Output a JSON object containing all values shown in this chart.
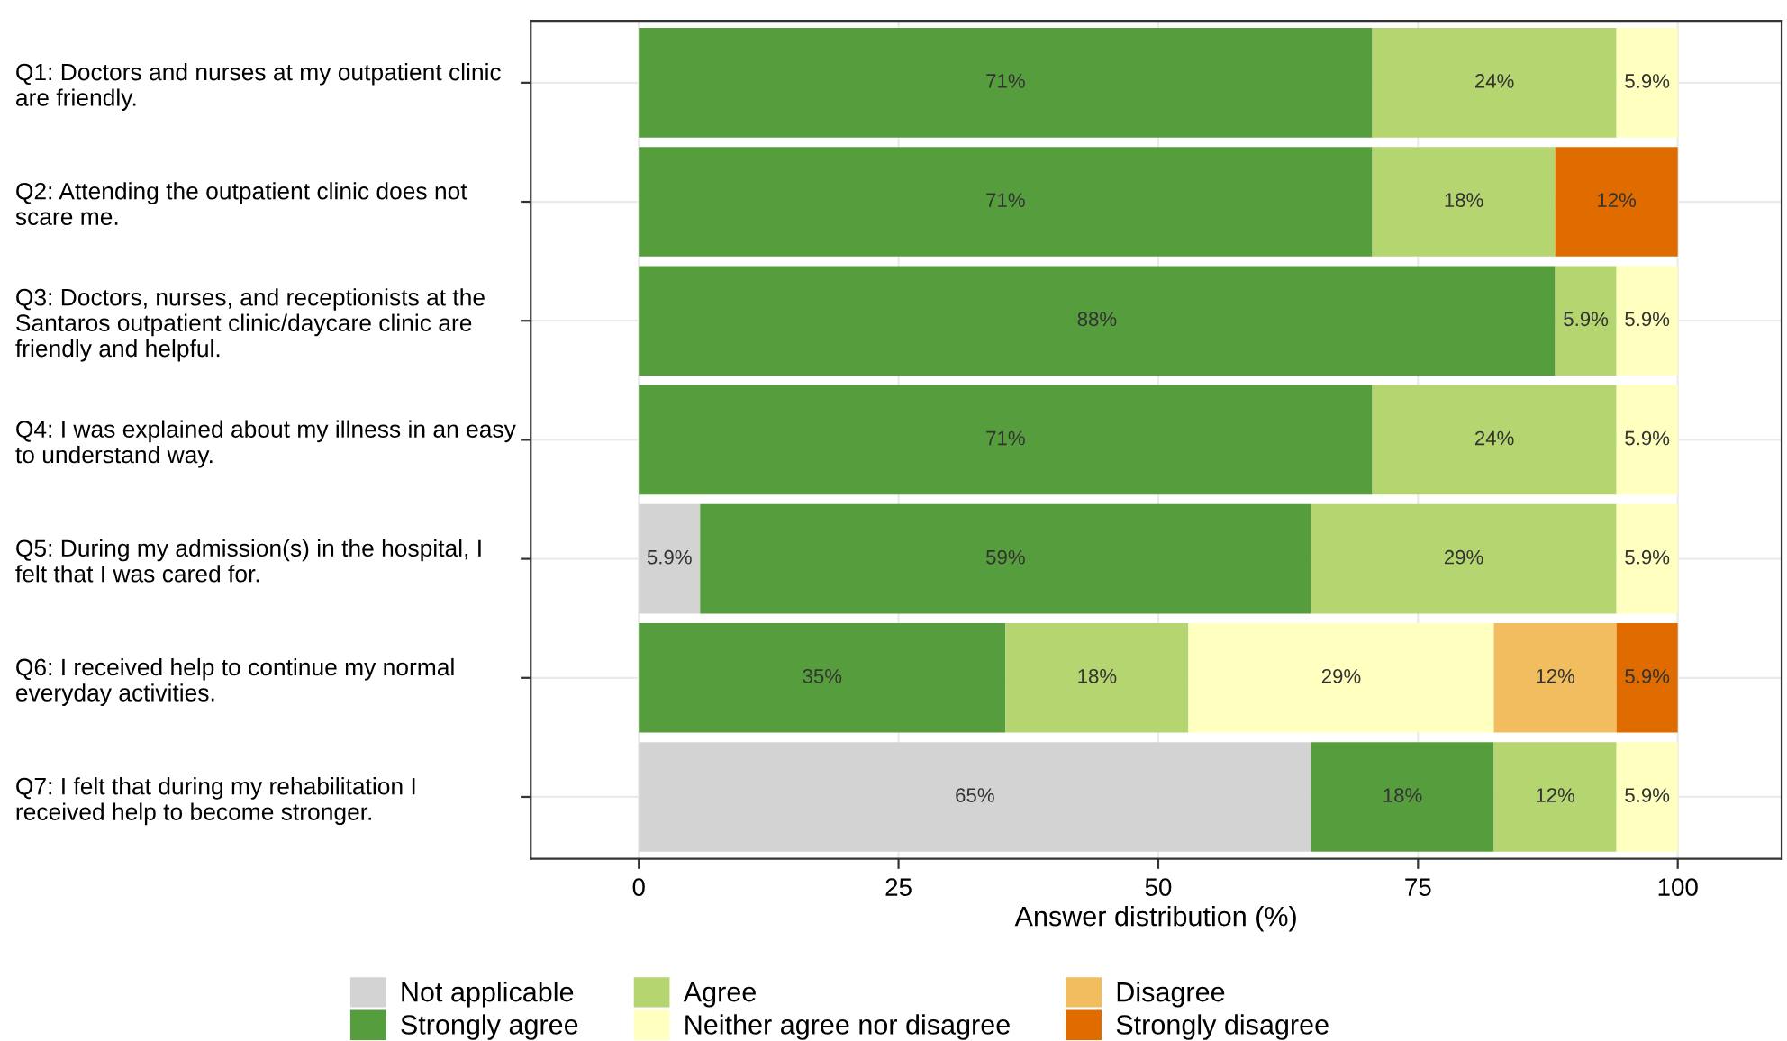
{
  "chart_data": {
    "type": "bar",
    "orientation": "horizontal",
    "stacked": true,
    "categories": [
      "Q1: Doctors and nurses at my outpatient clinic\nare friendly.",
      "Q2: Attending the outpatient clinic does not\nscare me.",
      "Q3: Doctors, nurses, and receptionists at the\nSantaros outpatient clinic/daycare clinic are\nfriendly and helpful.",
      "Q4: I was explained about my illness in an easy\nto understand way.",
      "Q5: During my admission(s) in the hospital, I\nfelt that I was cared for.",
      "Q6: I received help to continue my normal\neveryday activities.",
      "Q7: I felt that during my rehabilitation I\nreceived help to become stronger."
    ],
    "series": [
      {
        "name": "Not applicable",
        "color": "#d3d3d3",
        "values": [
          null,
          null,
          null,
          null,
          5.9,
          null,
          64.7
        ],
        "value_labels": [
          null,
          null,
          null,
          null,
          "5.9%",
          null,
          "65%"
        ]
      },
      {
        "name": "Strongly agree",
        "color": "#569e3d",
        "values": [
          70.6,
          70.6,
          88.2,
          70.6,
          58.8,
          35.3,
          17.6
        ],
        "value_labels": [
          "71%",
          "71%",
          "88%",
          "71%",
          "59%",
          "35%",
          "18%"
        ]
      },
      {
        "name": "Agree",
        "color": "#b4d56f",
        "values": [
          23.5,
          17.6,
          5.9,
          23.5,
          29.4,
          17.6,
          11.8
        ],
        "value_labels": [
          "24%",
          "18%",
          "5.9%",
          "24%",
          "29%",
          "18%",
          "12%"
        ]
      },
      {
        "name": "Neither agree nor disagree",
        "color": "#ffffc0",
        "values": [
          5.9,
          null,
          5.9,
          5.9,
          5.9,
          29.4,
          5.9
        ],
        "value_labels": [
          "5.9%",
          null,
          "5.9%",
          "5.9%",
          "5.9%",
          "29%",
          "5.9%"
        ]
      },
      {
        "name": "Disagree",
        "color": "#f1bd5e",
        "values": [
          null,
          null,
          null,
          null,
          null,
          11.8,
          null
        ],
        "value_labels": [
          null,
          null,
          null,
          null,
          null,
          "12%",
          null
        ]
      },
      {
        "name": "Strongly disagree",
        "color": "#e06c00",
        "values": [
          null,
          11.8,
          null,
          null,
          null,
          5.9,
          null
        ],
        "value_labels": [
          null,
          "12%",
          null,
          null,
          null,
          "5.9%",
          null
        ]
      }
    ],
    "xlabel": "Answer distribution (%)",
    "xlim": [
      -10.4,
      110
    ],
    "xticks": [
      0,
      25,
      50,
      75,
      100
    ],
    "grid": true,
    "legend": "bottom"
  }
}
